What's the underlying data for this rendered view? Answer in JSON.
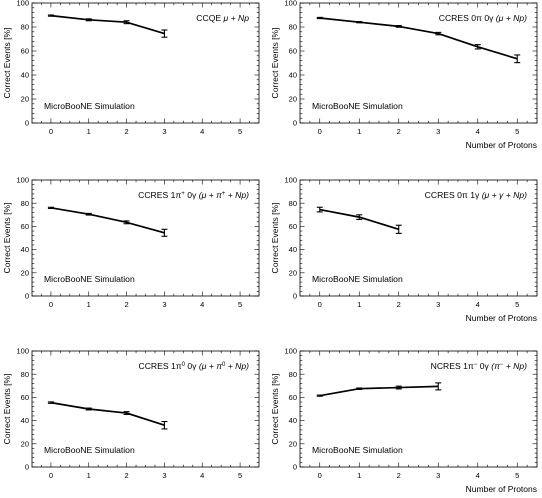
{
  "figure": {
    "simulation_label": "MicroBooNE Simulation",
    "xlabel": "Number of Protons",
    "ylabel": "Correct Events [%]"
  },
  "chart_data": [
    {
      "type": "line",
      "title_parts": [
        {
          "t": "CCQE "
        },
        {
          "t": "μ + Np",
          "it": true
        }
      ],
      "xlabel": "",
      "ylabel": "Correct Events [%]",
      "xlim": [
        -0.5,
        5.5
      ],
      "ylim": [
        0,
        100
      ],
      "xticks": [
        0,
        1,
        2,
        3,
        4,
        5
      ],
      "yticks": [
        0,
        20,
        40,
        60,
        80,
        100
      ],
      "x": [
        0,
        1,
        2,
        3
      ],
      "values": [
        89.5,
        86,
        84,
        74.5
      ],
      "errors": [
        0.5,
        0.8,
        1.2,
        3
      ]
    },
    {
      "type": "line",
      "title_parts": [
        {
          "t": "CCRES 0π 0γ "
        },
        {
          "t": "(μ + Np)",
          "it": true
        }
      ],
      "xlabel": "Number of Protons",
      "ylabel": "Correct Events [%]",
      "xlim": [
        -0.5,
        5.5
      ],
      "ylim": [
        0,
        100
      ],
      "xticks": [
        0,
        1,
        2,
        3,
        4,
        5
      ],
      "yticks": [
        0,
        20,
        40,
        60,
        80,
        100
      ],
      "x": [
        0,
        1,
        2,
        3,
        4,
        5
      ],
      "values": [
        87.5,
        84,
        80.5,
        74.5,
        63.5,
        53.5
      ],
      "errors": [
        0.5,
        0.5,
        0.7,
        1,
        1.8,
        3.2
      ]
    },
    {
      "type": "line",
      "title_parts": [
        {
          "t": "CCRES 1π"
        },
        {
          "t": "+",
          "sup": true
        },
        {
          "t": " 0γ "
        },
        {
          "t": "(μ + π",
          "it": true
        },
        {
          "t": "+",
          "sup": true
        },
        {
          "t": " + Np)",
          "it": true
        }
      ],
      "xlabel": "",
      "ylabel": "Correct Events [%]",
      "xlim": [
        -0.5,
        5.5
      ],
      "ylim": [
        0,
        100
      ],
      "xticks": [
        0,
        1,
        2,
        3,
        4,
        5
      ],
      "yticks": [
        0,
        20,
        40,
        60,
        80,
        100
      ],
      "x": [
        0,
        1,
        2,
        3
      ],
      "values": [
        76,
        70.5,
        63.5,
        54.5
      ],
      "errors": [
        0.5,
        0.7,
        1.2,
        3
      ]
    },
    {
      "type": "line",
      "title_parts": [
        {
          "t": "CCRES 0π 1γ "
        },
        {
          "t": "(μ + γ + Np)",
          "it": true
        }
      ],
      "xlabel": "Number of Protons",
      "ylabel": "Correct Events [%]",
      "xlim": [
        -0.5,
        5.5
      ],
      "ylim": [
        0,
        100
      ],
      "xticks": [
        0,
        1,
        2,
        3,
        4,
        5
      ],
      "yticks": [
        0,
        20,
        40,
        60,
        80,
        100
      ],
      "x": [
        0,
        1,
        2
      ],
      "values": [
        74.5,
        68,
        57.5
      ],
      "errors": [
        2,
        2,
        3.5
      ]
    },
    {
      "type": "line",
      "title_parts": [
        {
          "t": "CCRES 1π"
        },
        {
          "t": "0",
          "sup": true
        },
        {
          "t": " 0γ "
        },
        {
          "t": "(μ + π",
          "it": true
        },
        {
          "t": "0",
          "sup": true
        },
        {
          "t": " + Np)",
          "it": true
        }
      ],
      "xlabel": "",
      "ylabel": "Correct Events [%]",
      "xlim": [
        -0.5,
        5.5
      ],
      "ylim": [
        0,
        100
      ],
      "xticks": [
        0,
        1,
        2,
        3,
        4,
        5
      ],
      "yticks": [
        0,
        20,
        40,
        60,
        80,
        100
      ],
      "x": [
        0,
        1,
        2,
        3
      ],
      "values": [
        55.5,
        50,
        46.5,
        36
      ],
      "errors": [
        0.6,
        0.8,
        1.2,
        3.2
      ]
    },
    {
      "type": "line",
      "title_parts": [
        {
          "t": "NCRES 1π"
        },
        {
          "t": "−",
          "sup": true
        },
        {
          "t": " 0γ "
        },
        {
          "t": "(π",
          "it": true
        },
        {
          "t": "−",
          "sup": true
        },
        {
          "t": " + Np)",
          "it": true
        }
      ],
      "xlabel": "Number of Protons",
      "ylabel": "Correct Events [%]",
      "xlim": [
        -0.5,
        5.5
      ],
      "ylim": [
        0,
        100
      ],
      "xticks": [
        0,
        1,
        2,
        3,
        4,
        5
      ],
      "yticks": [
        0,
        20,
        40,
        60,
        80,
        100
      ],
      "x": [
        0,
        1,
        2,
        3
      ],
      "values": [
        61.5,
        67.5,
        68.5,
        69.5
      ],
      "errors": [
        0.5,
        0.6,
        1.2,
        3
      ]
    }
  ]
}
